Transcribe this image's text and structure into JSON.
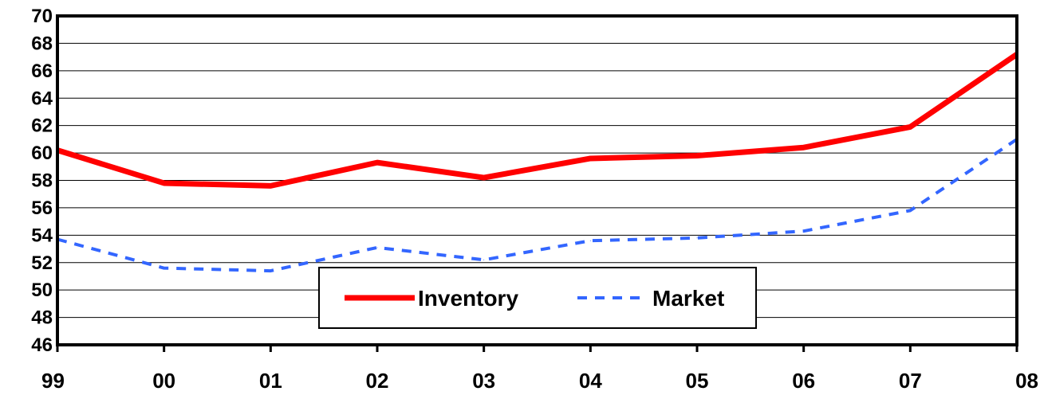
{
  "chart_data": {
    "type": "line",
    "categories": [
      "99",
      "00",
      "01",
      "02",
      "03",
      "04",
      "05",
      "06",
      "07",
      "08"
    ],
    "series": [
      {
        "name": "Inventory",
        "color": "#ff0000",
        "style": "solid",
        "values": [
          60.2,
          57.8,
          57.6,
          59.3,
          58.2,
          59.6,
          59.8,
          60.4,
          61.9,
          67.2
        ]
      },
      {
        "name": "Market",
        "color": "#3366ff",
        "style": "dashed",
        "values": [
          53.7,
          51.6,
          51.4,
          53.1,
          52.2,
          53.6,
          53.8,
          54.3,
          55.8,
          61.0
        ]
      }
    ],
    "ylim": [
      46,
      70
    ],
    "yticks": [
      "46",
      "48",
      "50",
      "52",
      "54",
      "56",
      "58",
      "60",
      "62",
      "64",
      "66",
      "68",
      "70"
    ],
    "grid": true,
    "legend_position": "bottom-center"
  }
}
